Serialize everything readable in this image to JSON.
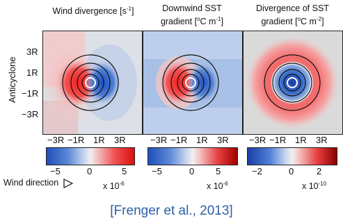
{
  "figure": {
    "panels": [
      {
        "title_line1": "Wind divergence [s",
        "title_sup1": "-1",
        "title_close1": "]",
        "title_line2": "",
        "title_sup2": "",
        "title_close2": ""
      },
      {
        "title_line1": "Downwind SST",
        "title_sup1": "",
        "title_close1": "",
        "title_line2": "gradient [",
        "title_sup2": "o",
        "title_close2": "C m",
        "title_sup3": "-1",
        "title_close3": "]"
      },
      {
        "title_line1": "Divergence of SST",
        "title_sup1": "",
        "title_close1": "",
        "title_line2": "gradient [",
        "title_sup2": "o",
        "title_close2": "C m",
        "title_sup3": "-2",
        "title_close3": "]"
      }
    ],
    "row_label": "Anticyclone",
    "y_ticks": [
      "3R",
      "1R",
      "−1R",
      "−3R"
    ],
    "x_ticks": [
      "−3R",
      "−1R",
      "1R",
      "3R"
    ],
    "colorbars": [
      {
        "ticks": [
          "−5",
          "0",
          "5"
        ],
        "scale_base": "x 10",
        "scale_exp": "-6"
      },
      {
        "ticks": [
          "−5",
          "0",
          "5"
        ],
        "scale_base": "x 10",
        "scale_exp": "-6"
      },
      {
        "ticks": [
          "−2",
          "0",
          "2"
        ],
        "scale_base": "x 10",
        "scale_exp": "-10"
      }
    ],
    "wind_direction_label": "Wind direction",
    "citation": "[Frenger et al., 2013]"
  },
  "colors": {
    "negative": "#1f5fbf",
    "neutral": "#e6e6e6",
    "positive": "#e02020",
    "dark_positive": "#8b0000",
    "citation": "#2b5fa8"
  }
}
